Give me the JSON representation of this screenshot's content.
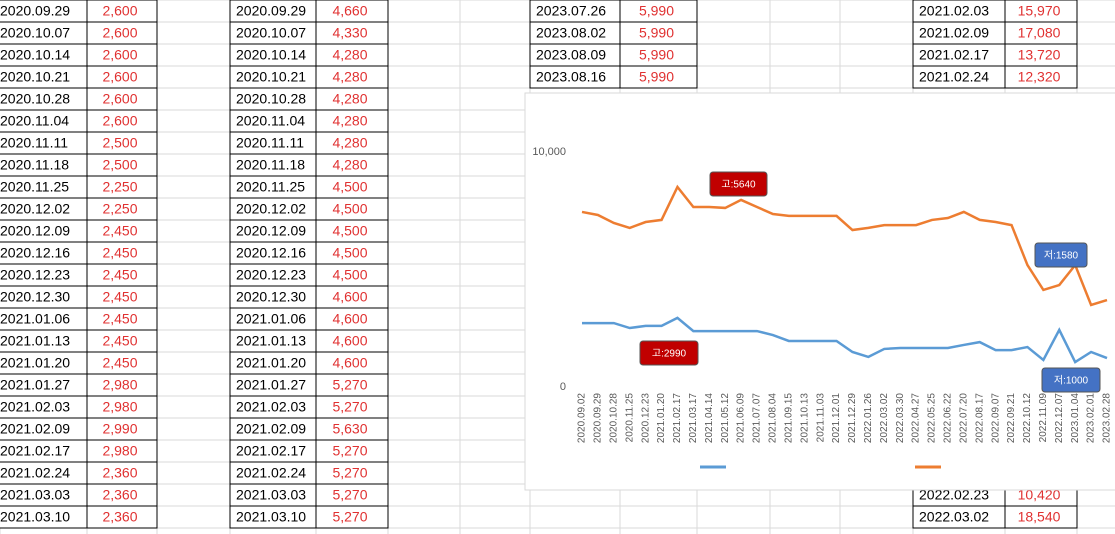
{
  "sheet": {
    "blocks": [
      {
        "rows": [
          [
            "2020.09.29",
            "2,600"
          ],
          [
            "2020.10.07",
            "2,600"
          ],
          [
            "2020.10.14",
            "2,600"
          ],
          [
            "2020.10.21",
            "2,600"
          ],
          [
            "2020.10.28",
            "2,600"
          ],
          [
            "2020.11.04",
            "2,600"
          ],
          [
            "2020.11.11",
            "2,500"
          ],
          [
            "2020.11.18",
            "2,500"
          ],
          [
            "2020.11.25",
            "2,250"
          ],
          [
            "2020.12.02",
            "2,250"
          ],
          [
            "2020.12.09",
            "2,450"
          ],
          [
            "2020.12.16",
            "2,450"
          ],
          [
            "2020.12.23",
            "2,450"
          ],
          [
            "2020.12.30",
            "2,450"
          ],
          [
            "2021.01.06",
            "2,450"
          ],
          [
            "2021.01.13",
            "2,450"
          ],
          [
            "2021.01.20",
            "2,450"
          ],
          [
            "2021.01.27",
            "2,980"
          ],
          [
            "2021.02.03",
            "2,980"
          ],
          [
            "2021.02.09",
            "2,990"
          ],
          [
            "2021.02.17",
            "2,980"
          ],
          [
            "2021.02.24",
            "2,360"
          ],
          [
            "2021.03.03",
            "2,360"
          ],
          [
            "2021.03.10",
            "2,360"
          ]
        ]
      },
      {
        "rows": [
          [
            "2020.09.29",
            "4,660"
          ],
          [
            "2020.10.07",
            "4,330"
          ],
          [
            "2020.10.14",
            "4,280"
          ],
          [
            "2020.10.21",
            "4,280"
          ],
          [
            "2020.10.28",
            "4,280"
          ],
          [
            "2020.11.04",
            "4,280"
          ],
          [
            "2020.11.11",
            "4,280"
          ],
          [
            "2020.11.18",
            "4,280"
          ],
          [
            "2020.11.25",
            "4,500"
          ],
          [
            "2020.12.02",
            "4,500"
          ],
          [
            "2020.12.09",
            "4,500"
          ],
          [
            "2020.12.16",
            "4,500"
          ],
          [
            "2020.12.23",
            "4,500"
          ],
          [
            "2020.12.30",
            "4,600"
          ],
          [
            "2021.01.06",
            "4,600"
          ],
          [
            "2021.01.13",
            "4,600"
          ],
          [
            "2021.01.20",
            "4,600"
          ],
          [
            "2021.01.27",
            "5,270"
          ],
          [
            "2021.02.03",
            "5,270"
          ],
          [
            "2021.02.09",
            "5,630"
          ],
          [
            "2021.02.17",
            "5,270"
          ],
          [
            "2021.02.24",
            "5,270"
          ],
          [
            "2021.03.03",
            "5,270"
          ],
          [
            "2021.03.10",
            "5,270"
          ]
        ]
      },
      {
        "rows": [
          [
            "2023.07.26",
            "5,990"
          ],
          [
            "2023.08.02",
            "5,990"
          ],
          [
            "2023.08.09",
            "5,990"
          ],
          [
            "2023.08.16",
            "5,990"
          ]
        ]
      },
      {
        "rows": [
          [
            "2021.02.03",
            "15,970"
          ],
          [
            "2021.02.09",
            "17,080"
          ],
          [
            "2021.02.17",
            "13,720"
          ],
          [
            "2021.02.24",
            "12,320"
          ]
        ]
      },
      {
        "rows": [
          [
            "2022.02.23",
            "10,420"
          ],
          [
            "2022.03.02",
            "18,540"
          ]
        ]
      }
    ]
  },
  "chart_data": {
    "type": "line",
    "categories": [
      "2020.09.02",
      "2020.09.29",
      "2020.10.28",
      "2020.11.25",
      "2020.12.23",
      "2021.01.20",
      "2021.02.17",
      "2021.03.17",
      "2021.04.14",
      "2021.05.12",
      "2021.06.09",
      "2021.07.07",
      "2021.08.04",
      "2021.09.15",
      "2021.10.13",
      "2021.11.03",
      "2021.12.01",
      "2021.12.29",
      "2022.01.26",
      "2022.03.02",
      "2022.03.30",
      "2022.04.27",
      "2022.05.25",
      "2022.06.22",
      "2022.07.20",
      "2022.08.17",
      "2022.09.07",
      "2022.09.21",
      "2022.10.12",
      "2022.11.09",
      "2022.12.07",
      "2023.01.04",
      "2023.02.01",
      "2023.02.28"
    ],
    "series": [
      {
        "color": "#5b9bd5",
        "values": [
          2720,
          2720,
          2720,
          2510,
          2600,
          2600,
          2940,
          2380,
          2380,
          2380,
          2380,
          2380,
          2210,
          1960,
          1960,
          1960,
          1960,
          1490,
          1280,
          1620,
          1660,
          1660,
          1660,
          1660,
          1790,
          1910,
          1570,
          1570,
          1700,
          1150,
          2430,
          1060,
          1490,
          1230
        ]
      },
      {
        "color": "#ed7d31",
        "values": [
          7450,
          7320,
          6980,
          6770,
          7020,
          7110,
          8510,
          7660,
          7660,
          7620,
          7960,
          7660,
          7360,
          7280,
          7280,
          7280,
          7280,
          6680,
          6770,
          6890,
          6890,
          6890,
          7110,
          7190,
          7450,
          7110,
          7020,
          6890,
          5190,
          4130,
          4340,
          5190,
          3490,
          3700
        ]
      }
    ],
    "ylim": [
      0,
      10000
    ],
    "yticks": [
      0,
      {
        "value": 10000,
        "label": "10,000"
      }
    ],
    "annotations": [
      {
        "text": "고:5640",
        "color": "#c00000"
      },
      {
        "text": "고:2990",
        "color": "#c00000"
      },
      {
        "text": "저:1580",
        "color": "#4472c4"
      },
      {
        "text": "저:1000",
        "color": "#4472c4"
      }
    ]
  }
}
